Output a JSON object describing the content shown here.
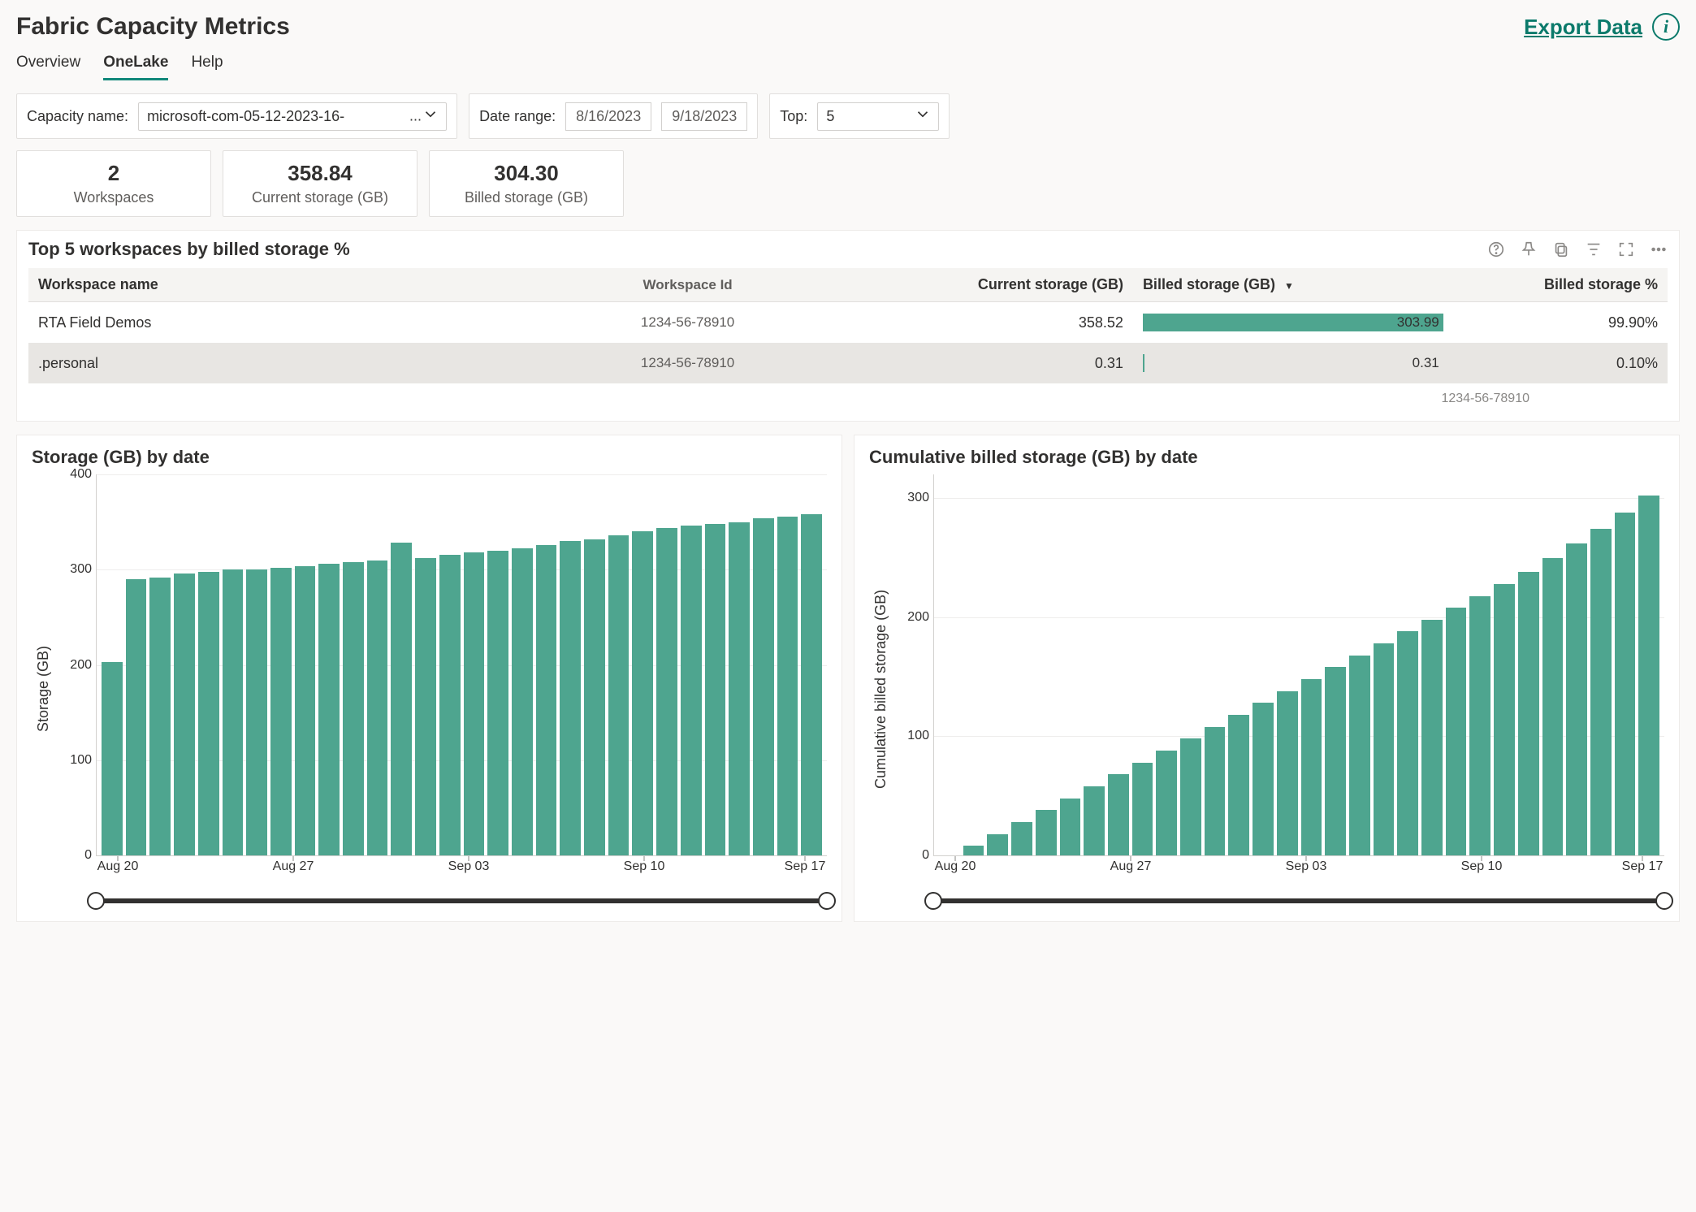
{
  "colors": {
    "accent": "#0b7a6b",
    "bar": "#4ea58f",
    "panel_border": "#edebe9",
    "row_alt": "#e8e6e3",
    "text": "#323130",
    "muted": "#605e5c",
    "grid": "#eeedec"
  },
  "header": {
    "title": "Fabric Capacity Metrics",
    "export_label": "Export Data"
  },
  "tabs": [
    {
      "id": "overview",
      "label": "Overview",
      "active": false
    },
    {
      "id": "onelake",
      "label": "OneLake",
      "active": true
    },
    {
      "id": "help",
      "label": "Help",
      "active": false
    }
  ],
  "filters": {
    "capacity_label": "Capacity name:",
    "capacity_value": "microsoft-com-05-12-2023-16-",
    "capacity_suffix": "...",
    "date_label": "Date range:",
    "date_from": "8/16/2023",
    "date_to": "9/18/2023",
    "top_label": "Top:",
    "top_value": "5"
  },
  "stats": [
    {
      "value": "2",
      "label": "Workspaces"
    },
    {
      "value": "358.84",
      "label": "Current storage (GB)"
    },
    {
      "value": "304.30",
      "label": "Billed storage (GB)"
    }
  ],
  "table": {
    "title": "Top 5 workspaces by billed storage %",
    "columns": {
      "name": "Workspace name",
      "id": "Workspace Id",
      "current": "Current storage (GB)",
      "billed": "Billed storage (GB)",
      "pct": "Billed storage %"
    },
    "sort_column": "billed",
    "sort_dir": "desc",
    "bar_max": 304.3,
    "rows": [
      {
        "name": "RTA Field Demos",
        "id": "1234-56-78910",
        "current": "358.52",
        "billed": "303.99",
        "billed_num": 303.99,
        "pct": "99.90%"
      },
      {
        "name": ".personal",
        "id": "1234-56-78910",
        "current": "0.31",
        "billed": "0.31",
        "billed_num": 0.31,
        "pct": "0.10%"
      }
    ],
    "footer_id": "1234-56-78910"
  },
  "chart_left": {
    "type": "bar",
    "title": "Storage (GB) by date",
    "y_title": "Storage (GB)",
    "y_ticks": [
      0,
      100,
      200,
      300,
      400
    ],
    "y_max": 400,
    "bar_color": "#4ea58f",
    "x_ticks": [
      {
        "label": "Aug 20",
        "pos_pct": 3
      },
      {
        "label": "Aug 27",
        "pos_pct": 27
      },
      {
        "label": "Sep 03",
        "pos_pct": 51
      },
      {
        "label": "Sep 10",
        "pos_pct": 75
      },
      {
        "label": "Sep 17",
        "pos_pct": 97
      }
    ],
    "values": [
      203,
      290,
      292,
      296,
      298,
      300,
      300,
      302,
      304,
      306,
      308,
      310,
      328,
      312,
      316,
      318,
      320,
      322,
      326,
      330,
      332,
      336,
      340,
      344,
      346,
      348,
      350,
      354,
      356,
      358
    ]
  },
  "chart_right": {
    "type": "bar",
    "title": "Cumulative billed storage (GB) by date",
    "y_title": "Cumulative billed storage (GB)",
    "y_ticks": [
      0,
      100,
      200,
      300
    ],
    "y_max": 320,
    "bar_color": "#4ea58f",
    "x_ticks": [
      {
        "label": "Aug 20",
        "pos_pct": 3
      },
      {
        "label": "Aug 27",
        "pos_pct": 27
      },
      {
        "label": "Sep 03",
        "pos_pct": 51
      },
      {
        "label": "Sep 10",
        "pos_pct": 75
      },
      {
        "label": "Sep 17",
        "pos_pct": 97
      }
    ],
    "values": [
      0,
      8,
      18,
      28,
      38,
      48,
      58,
      68,
      78,
      88,
      98,
      108,
      118,
      128,
      138,
      148,
      158,
      168,
      178,
      188,
      198,
      208,
      218,
      228,
      238,
      250,
      262,
      274,
      288,
      302
    ]
  }
}
